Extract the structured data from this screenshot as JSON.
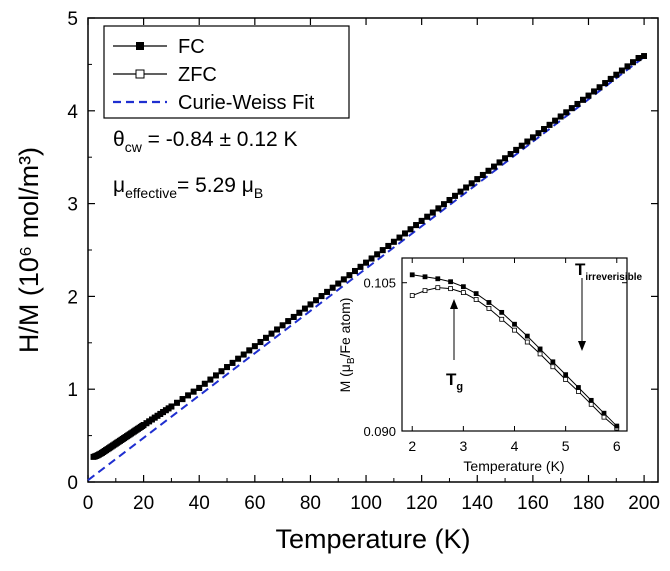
{
  "chart_data": [
    {
      "type": "line",
      "xlabel": "Temperature (K)",
      "ylabel": "H/M (10⁶ mol/m³)",
      "xlim": [
        0,
        205
      ],
      "ylim": [
        0,
        5
      ],
      "xticks": [
        0,
        20,
        40,
        60,
        80,
        100,
        120,
        140,
        160,
        180,
        200
      ],
      "yticks": [
        0,
        1,
        2,
        3,
        4,
        5
      ],
      "grid": false,
      "legend_position": "top-left",
      "series": [
        {
          "name": "FC",
          "marker": "filled-square",
          "color": "#000000",
          "x": [
            2,
            2.5,
            3,
            3.5,
            4,
            4.5,
            5,
            5.5,
            6,
            6.5,
            7,
            7.5,
            8,
            8.5,
            9,
            9.5,
            10,
            10.5,
            11,
            11.5,
            12,
            12.5,
            13,
            13.5,
            14,
            14.5,
            15,
            15.5,
            16,
            16.5,
            17,
            17.5,
            18,
            18.5,
            19,
            19.5,
            20,
            21,
            22,
            23,
            24,
            25,
            26,
            27,
            28,
            29,
            30,
            32,
            34,
            36,
            38,
            40,
            42,
            44,
            46,
            48,
            50,
            52,
            54,
            56,
            58,
            60,
            62,
            64,
            66,
            68,
            70,
            72,
            74,
            76,
            78,
            80,
            82,
            84,
            86,
            88,
            90,
            92,
            94,
            96,
            98,
            100,
            102,
            104,
            106,
            108,
            110,
            112,
            114,
            116,
            118,
            120,
            122,
            124,
            126,
            128,
            130,
            132,
            134,
            136,
            138,
            140,
            142,
            144,
            146,
            148,
            150,
            152,
            154,
            156,
            158,
            160,
            162,
            164,
            166,
            168,
            170,
            172,
            174,
            176,
            178,
            180,
            182,
            184,
            186,
            188,
            190,
            192,
            194,
            196,
            198,
            200
          ],
          "y": [
            0.27,
            0.275,
            0.28,
            0.287,
            0.295,
            0.303,
            0.312,
            0.322,
            0.332,
            0.342,
            0.352,
            0.362,
            0.372,
            0.382,
            0.392,
            0.402,
            0.412,
            0.422,
            0.432,
            0.442,
            0.452,
            0.462,
            0.472,
            0.482,
            0.492,
            0.502,
            0.512,
            0.522,
            0.532,
            0.542,
            0.552,
            0.562,
            0.572,
            0.582,
            0.592,
            0.602,
            0.612,
            0.632,
            0.652,
            0.672,
            0.692,
            0.712,
            0.732,
            0.752,
            0.772,
            0.792,
            0.812,
            0.852,
            0.892,
            0.932,
            0.972,
            1.012,
            1.057,
            1.102,
            1.147,
            1.192,
            1.237,
            1.282,
            1.327,
            1.372,
            1.417,
            1.462,
            1.507,
            1.552,
            1.597,
            1.642,
            1.687,
            1.732,
            1.777,
            1.822,
            1.867,
            1.912,
            1.957,
            2.002,
            2.047,
            2.092,
            2.137,
            2.182,
            2.227,
            2.272,
            2.317,
            2.362,
            2.407,
            2.452,
            2.497,
            2.542,
            2.587,
            2.632,
            2.677,
            2.722,
            2.767,
            2.812,
            2.857,
            2.902,
            2.947,
            2.992,
            3.037,
            3.082,
            3.127,
            3.172,
            3.217,
            3.262,
            3.307,
            3.352,
            3.397,
            3.442,
            3.487,
            3.532,
            3.577,
            3.622,
            3.667,
            3.712,
            3.757,
            3.802,
            3.847,
            3.892,
            3.937,
            3.982,
            4.027,
            4.072,
            4.117,
            4.162,
            4.207,
            4.252,
            4.297,
            4.342,
            4.387,
            4.432,
            4.477,
            4.522,
            4.567,
            4.59
          ]
        },
        {
          "name": "ZFC",
          "marker": "open-square",
          "color": "#000000",
          "x": [
            2,
            2.5,
            3,
            3.5,
            4,
            4.5,
            5,
            5.5,
            6,
            6.5,
            7,
            7.5,
            8,
            8.5,
            9,
            9.5,
            10,
            10.5,
            11,
            11.5,
            12,
            12.5,
            13,
            13.5,
            14,
            14.5,
            15,
            15.5,
            16,
            16.5,
            17,
            17.5,
            18,
            18.5,
            19,
            19.5,
            20,
            21,
            22,
            23,
            24,
            25,
            26,
            27,
            28,
            29,
            30,
            32,
            34,
            36,
            38,
            40,
            42,
            44,
            46,
            48,
            50,
            52,
            54,
            56,
            58,
            60,
            62,
            64,
            66,
            68,
            70,
            72,
            74,
            76,
            78,
            80,
            82,
            84,
            86,
            88,
            90,
            92,
            94,
            96,
            98,
            100,
            102,
            104,
            106,
            108,
            110,
            112,
            114,
            116,
            118,
            120,
            122,
            124,
            126,
            128,
            130,
            132,
            134,
            136,
            138,
            140,
            142,
            144,
            146,
            148,
            150,
            152,
            154,
            156,
            158,
            160,
            162,
            164,
            166,
            168,
            170,
            172,
            174,
            176,
            178,
            180,
            182,
            184,
            186,
            188,
            190,
            192,
            194,
            196,
            198,
            200
          ],
          "y": [
            0.272,
            0.277,
            0.283,
            0.29,
            0.298,
            0.306,
            0.315,
            0.325,
            0.335,
            0.345,
            0.355,
            0.365,
            0.375,
            0.385,
            0.395,
            0.405,
            0.415,
            0.425,
            0.435,
            0.445,
            0.455,
            0.465,
            0.475,
            0.485,
            0.495,
            0.505,
            0.515,
            0.525,
            0.535,
            0.545,
            0.555,
            0.565,
            0.575,
            0.585,
            0.595,
            0.605,
            0.615,
            0.635,
            0.655,
            0.675,
            0.695,
            0.715,
            0.735,
            0.755,
            0.775,
            0.795,
            0.815,
            0.855,
            0.895,
            0.935,
            0.975,
            1.015,
            1.06,
            1.105,
            1.15,
            1.195,
            1.24,
            1.285,
            1.33,
            1.375,
            1.42,
            1.465,
            1.51,
            1.555,
            1.6,
            1.645,
            1.69,
            1.735,
            1.78,
            1.825,
            1.87,
            1.915,
            1.96,
            2.005,
            2.05,
            2.095,
            2.14,
            2.185,
            2.23,
            2.275,
            2.32,
            2.365,
            2.41,
            2.455,
            2.5,
            2.545,
            2.59,
            2.635,
            2.68,
            2.725,
            2.77,
            2.815,
            2.86,
            2.905,
            2.95,
            2.995,
            3.04,
            3.085,
            3.13,
            3.175,
            3.22,
            3.265,
            3.31,
            3.355,
            3.4,
            3.445,
            3.49,
            3.535,
            3.58,
            3.625,
            3.67,
            3.715,
            3.76,
            3.805,
            3.85,
            3.895,
            3.94,
            3.985,
            4.03,
            4.075,
            4.12,
            4.165,
            4.21,
            4.255,
            4.3,
            4.345,
            4.39,
            4.435,
            4.48,
            4.525,
            4.57,
            4.59
          ]
        },
        {
          "name": "Curie-Weiss Fit",
          "style": "dashed",
          "color": "#1f2fd0",
          "x": [
            0,
            200
          ],
          "y": [
            0.02,
            4.58
          ]
        }
      ],
      "annotations": [
        {
          "main": "θ",
          "sub": "cw",
          "rest": " = -0.84 ± 0.12 K"
        },
        {
          "main": "μ",
          "sub": "effective",
          "rest": "= 5.29 μ",
          "sub2": "B"
        }
      ]
    },
    {
      "type": "line",
      "inset": true,
      "xlabel": "Temperature (K)",
      "ylabel": "M (μB/Fe atom)",
      "xlim": [
        1.8,
        6.2
      ],
      "ylim": [
        0.09,
        0.1075
      ],
      "xticks": [
        2,
        3,
        4,
        5,
        6
      ],
      "yticks": [
        0.09,
        0.105
      ],
      "ytick_labels": [
        "0.090",
        "0.105"
      ],
      "series": [
        {
          "name": "FC",
          "marker": "filled-square",
          "color": "#000000",
          "x": [
            2,
            2.25,
            2.5,
            2.75,
            3,
            3.25,
            3.5,
            3.75,
            4,
            4.25,
            4.5,
            4.75,
            5,
            5.25,
            5.5,
            5.75,
            6
          ],
          "y": [
            0.1058,
            0.1056,
            0.1054,
            0.1051,
            0.1046,
            0.1039,
            0.103,
            0.102,
            0.1008,
            0.0996,
            0.0983,
            0.097,
            0.0957,
            0.0944,
            0.0931,
            0.0918,
            0.0905
          ]
        },
        {
          "name": "ZFC",
          "marker": "open-square",
          "color": "#000000",
          "x": [
            2,
            2.25,
            2.5,
            2.75,
            3,
            3.25,
            3.5,
            3.75,
            4,
            4.25,
            4.5,
            4.75,
            5,
            5.25,
            5.5,
            5.75,
            6
          ],
          "y": [
            0.1037,
            0.1042,
            0.1045,
            0.1044,
            0.104,
            0.1033,
            0.1024,
            0.1013,
            0.1002,
            0.099,
            0.0978,
            0.0965,
            0.0952,
            0.094,
            0.0927,
            0.0914,
            0.0903
          ]
        }
      ],
      "annotations": [
        {
          "label": "T",
          "sub": "g",
          "x": 2.5
        },
        {
          "label": "T",
          "sub": "irreverisible",
          "x": 5
        }
      ]
    }
  ]
}
